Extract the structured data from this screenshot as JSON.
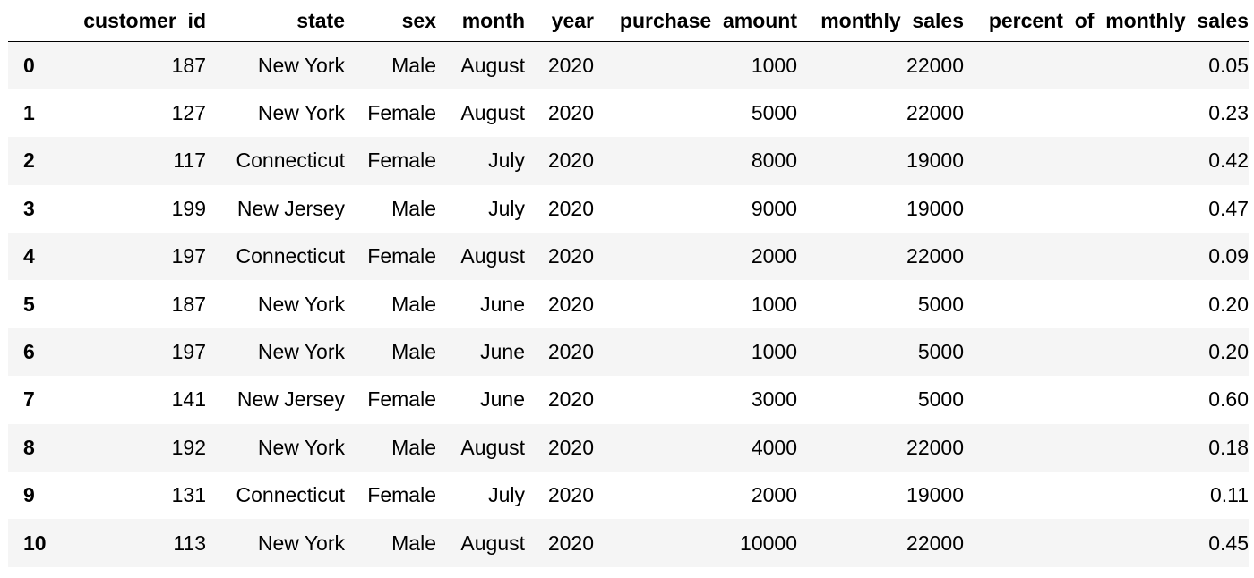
{
  "table": {
    "index_header": "",
    "columns": [
      "customer_id",
      "state",
      "sex",
      "month",
      "year",
      "purchase_amount",
      "monthly_sales",
      "percent_of_monthly_sales"
    ],
    "rows": [
      {
        "index": "0",
        "cells": [
          "187",
          "New York",
          "Male",
          "August",
          "2020",
          "1000",
          "22000",
          "0.05"
        ]
      },
      {
        "index": "1",
        "cells": [
          "127",
          "New York",
          "Female",
          "August",
          "2020",
          "5000",
          "22000",
          "0.23"
        ]
      },
      {
        "index": "2",
        "cells": [
          "117",
          "Connecticut",
          "Female",
          "July",
          "2020",
          "8000",
          "19000",
          "0.42"
        ]
      },
      {
        "index": "3",
        "cells": [
          "199",
          "New Jersey",
          "Male",
          "July",
          "2020",
          "9000",
          "19000",
          "0.47"
        ]
      },
      {
        "index": "4",
        "cells": [
          "197",
          "Connecticut",
          "Female",
          "August",
          "2020",
          "2000",
          "22000",
          "0.09"
        ]
      },
      {
        "index": "5",
        "cells": [
          "187",
          "New York",
          "Male",
          "June",
          "2020",
          "1000",
          "5000",
          "0.20"
        ]
      },
      {
        "index": "6",
        "cells": [
          "197",
          "New York",
          "Male",
          "June",
          "2020",
          "1000",
          "5000",
          "0.20"
        ]
      },
      {
        "index": "7",
        "cells": [
          "141",
          "New Jersey",
          "Female",
          "June",
          "2020",
          "3000",
          "5000",
          "0.60"
        ]
      },
      {
        "index": "8",
        "cells": [
          "192",
          "New York",
          "Male",
          "August",
          "2020",
          "4000",
          "22000",
          "0.18"
        ]
      },
      {
        "index": "9",
        "cells": [
          "131",
          "Connecticut",
          "Female",
          "July",
          "2020",
          "2000",
          "19000",
          "0.11"
        ]
      },
      {
        "index": "10",
        "cells": [
          "113",
          "New York",
          "Male",
          "August",
          "2020",
          "10000",
          "22000",
          "0.45"
        ]
      }
    ]
  }
}
